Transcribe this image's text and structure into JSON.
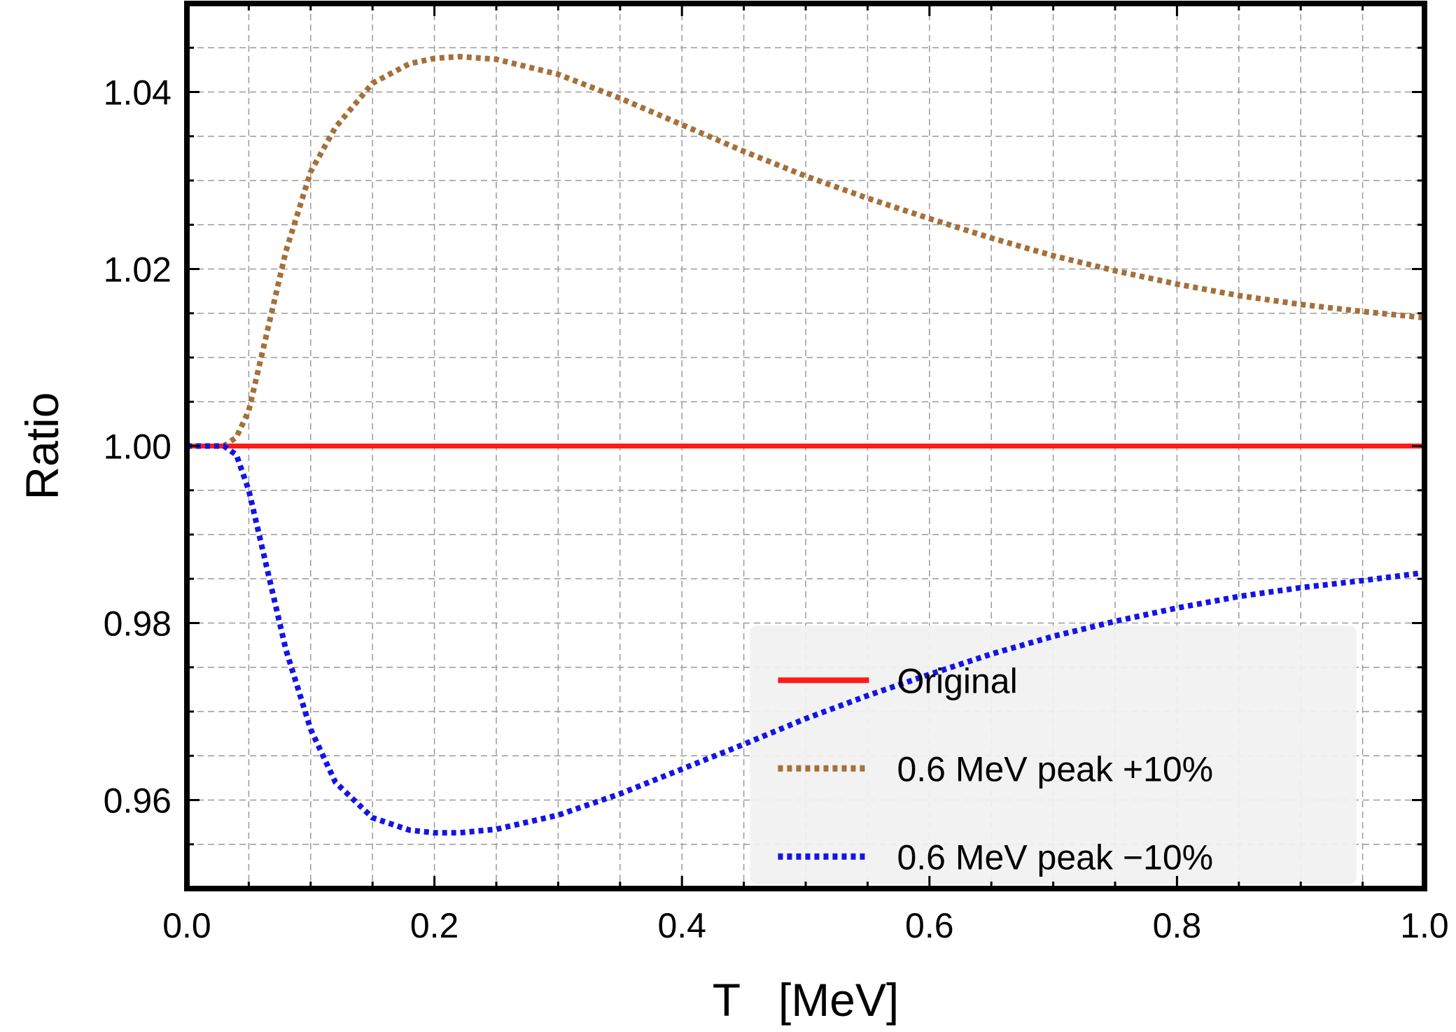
{
  "chart_data": {
    "type": "line",
    "title": "",
    "xlabel": "T   [MeV]",
    "ylabel": "Ratio",
    "xlim": [
      0.0,
      1.0
    ],
    "ylim": [
      0.95,
      1.05
    ],
    "x_ticks": [
      0.0,
      0.2,
      0.4,
      0.6,
      0.8,
      1.0
    ],
    "x_tick_labels": [
      "0.0",
      "0.2",
      "0.4",
      "0.6",
      "0.8",
      "1.0"
    ],
    "y_ticks": [
      0.96,
      0.98,
      1.0,
      1.02,
      1.04
    ],
    "y_tick_labels": [
      "0.96",
      "0.98",
      "1.00",
      "1.02",
      "1.04"
    ],
    "grid": true,
    "legend_position": "bottom-right",
    "series": [
      {
        "name": "Original",
        "style": "solid",
        "color": "#ff1a1a",
        "x": [
          0.0,
          1.0
        ],
        "y": [
          1.0,
          1.0
        ]
      },
      {
        "name": "0.6 MeV peak +10%",
        "style": "dotted",
        "color": "#a5703a",
        "x": [
          0.0,
          0.03,
          0.04,
          0.05,
          0.06,
          0.08,
          0.1,
          0.12,
          0.15,
          0.18,
          0.2,
          0.22,
          0.25,
          0.3,
          0.35,
          0.4,
          0.45,
          0.5,
          0.55,
          0.6,
          0.65,
          0.7,
          0.75,
          0.8,
          0.85,
          0.9,
          0.95,
          1.0
        ],
        "y": [
          1.0,
          1.0,
          1.001,
          1.004,
          1.01,
          1.022,
          1.031,
          1.036,
          1.041,
          1.0432,
          1.0438,
          1.044,
          1.0437,
          1.042,
          1.0393,
          1.0363,
          1.0333,
          1.0305,
          1.028,
          1.0257,
          1.0235,
          1.0215,
          1.0198,
          1.0183,
          1.017,
          1.016,
          1.0152,
          1.0145
        ]
      },
      {
        "name": "0.6 MeV peak −10%",
        "style": "dotted",
        "color": "#1414e6",
        "x": [
          0.0,
          0.03,
          0.04,
          0.05,
          0.06,
          0.08,
          0.1,
          0.12,
          0.15,
          0.18,
          0.2,
          0.22,
          0.25,
          0.3,
          0.35,
          0.4,
          0.45,
          0.5,
          0.55,
          0.6,
          0.65,
          0.7,
          0.75,
          0.8,
          0.85,
          0.9,
          0.95,
          1.0
        ],
        "y": [
          1.0,
          1.0,
          0.999,
          0.995,
          0.989,
          0.977,
          0.968,
          0.962,
          0.958,
          0.9566,
          0.9563,
          0.9563,
          0.9567,
          0.9583,
          0.9607,
          0.9635,
          0.9663,
          0.9692,
          0.9718,
          0.9742,
          0.9765,
          0.9785,
          0.9802,
          0.9817,
          0.983,
          0.984,
          0.9848,
          0.9857
        ]
      }
    ]
  }
}
